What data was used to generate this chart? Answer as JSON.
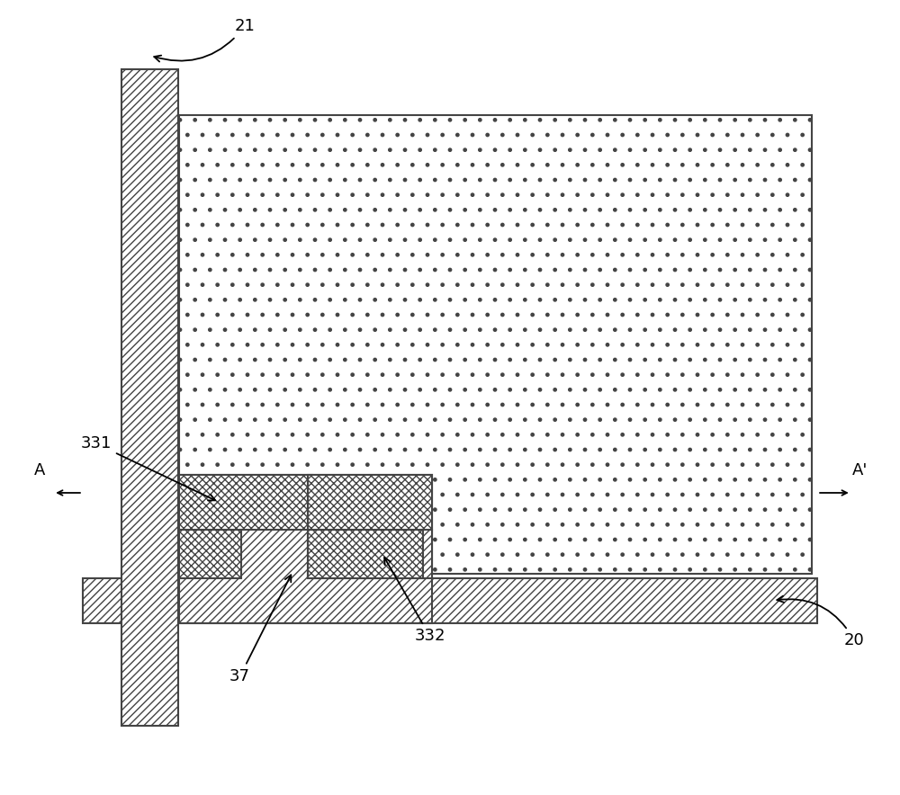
{
  "bg_color": "#ffffff",
  "line_color": "#444444",
  "figsize": [
    10.0,
    8.84
  ],
  "label_21": "21",
  "label_20": "20",
  "label_331": "331",
  "label_332": "332",
  "label_37": "37",
  "label_A": "A",
  "label_Aprime": "A'"
}
